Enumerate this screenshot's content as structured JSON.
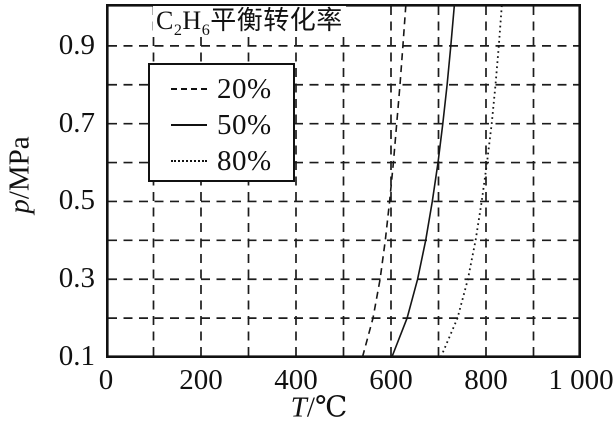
{
  "colors": {
    "ink": "#111111",
    "background": "#ffffff"
  },
  "title": {
    "formula_base1": "C",
    "formula_sub1": "2",
    "formula_base2": "H",
    "formula_sub2": "6",
    "suffix": "平衡转化率"
  },
  "axes": {
    "y_label": {
      "variable": "p",
      "rest": "/MPa"
    },
    "x_label": {
      "variable": "T",
      "rest": "/℃"
    },
    "x_tick_labels": [
      "0",
      "200",
      "400",
      "600",
      "800",
      "1 000"
    ],
    "y_tick_labels": [
      "0.9",
      "0.7",
      "0.5",
      "0.3",
      "0.1"
    ]
  },
  "legend": {
    "items": [
      {
        "label": "20%",
        "line_style": "dashed"
      },
      {
        "label": "50%",
        "line_style": "solid"
      },
      {
        "label": "80%",
        "line_style": "dotted"
      }
    ]
  },
  "chart_data": {
    "type": "line",
    "title": "C₂H₆平衡转化率",
    "xlabel": "T/℃",
    "ylabel": "p/MPa",
    "xlim": [
      0,
      1000
    ],
    "ylim": [
      0.1,
      1.0
    ],
    "x_ticks": [
      0,
      200,
      400,
      600,
      800,
      1000
    ],
    "y_ticks": [
      0.9,
      0.7,
      0.5,
      0.3,
      0.1
    ],
    "grid": {
      "on": true,
      "x_step": 100,
      "y_step": 0.1,
      "style": "dashed"
    },
    "legend_position": "upper-left-inside",
    "series": [
      {
        "name": "20%",
        "line_style": "dashed",
        "points": [
          [
            540,
            0.1
          ],
          [
            562,
            0.2
          ],
          [
            577,
            0.3
          ],
          [
            588,
            0.4
          ],
          [
            597,
            0.5
          ],
          [
            605,
            0.6
          ],
          [
            612,
            0.7
          ],
          [
            619,
            0.8
          ],
          [
            625,
            0.9
          ],
          [
            631,
            1.0
          ]
        ]
      },
      {
        "name": "50%",
        "line_style": "solid",
        "points": [
          [
            602,
            0.1
          ],
          [
            634,
            0.2
          ],
          [
            656,
            0.3
          ],
          [
            673,
            0.4
          ],
          [
            687,
            0.5
          ],
          [
            699,
            0.6
          ],
          [
            709,
            0.7
          ],
          [
            718,
            0.8
          ],
          [
            726,
            0.9
          ],
          [
            733,
            1.0
          ]
        ]
      },
      {
        "name": "80%",
        "line_style": "dotted",
        "points": [
          [
            705,
            0.1
          ],
          [
            740,
            0.2
          ],
          [
            762,
            0.3
          ],
          [
            778,
            0.4
          ],
          [
            791,
            0.5
          ],
          [
            802,
            0.6
          ],
          [
            812,
            0.7
          ],
          [
            820,
            0.8
          ],
          [
            827,
            0.9
          ],
          [
            833,
            1.0
          ]
        ]
      }
    ]
  }
}
